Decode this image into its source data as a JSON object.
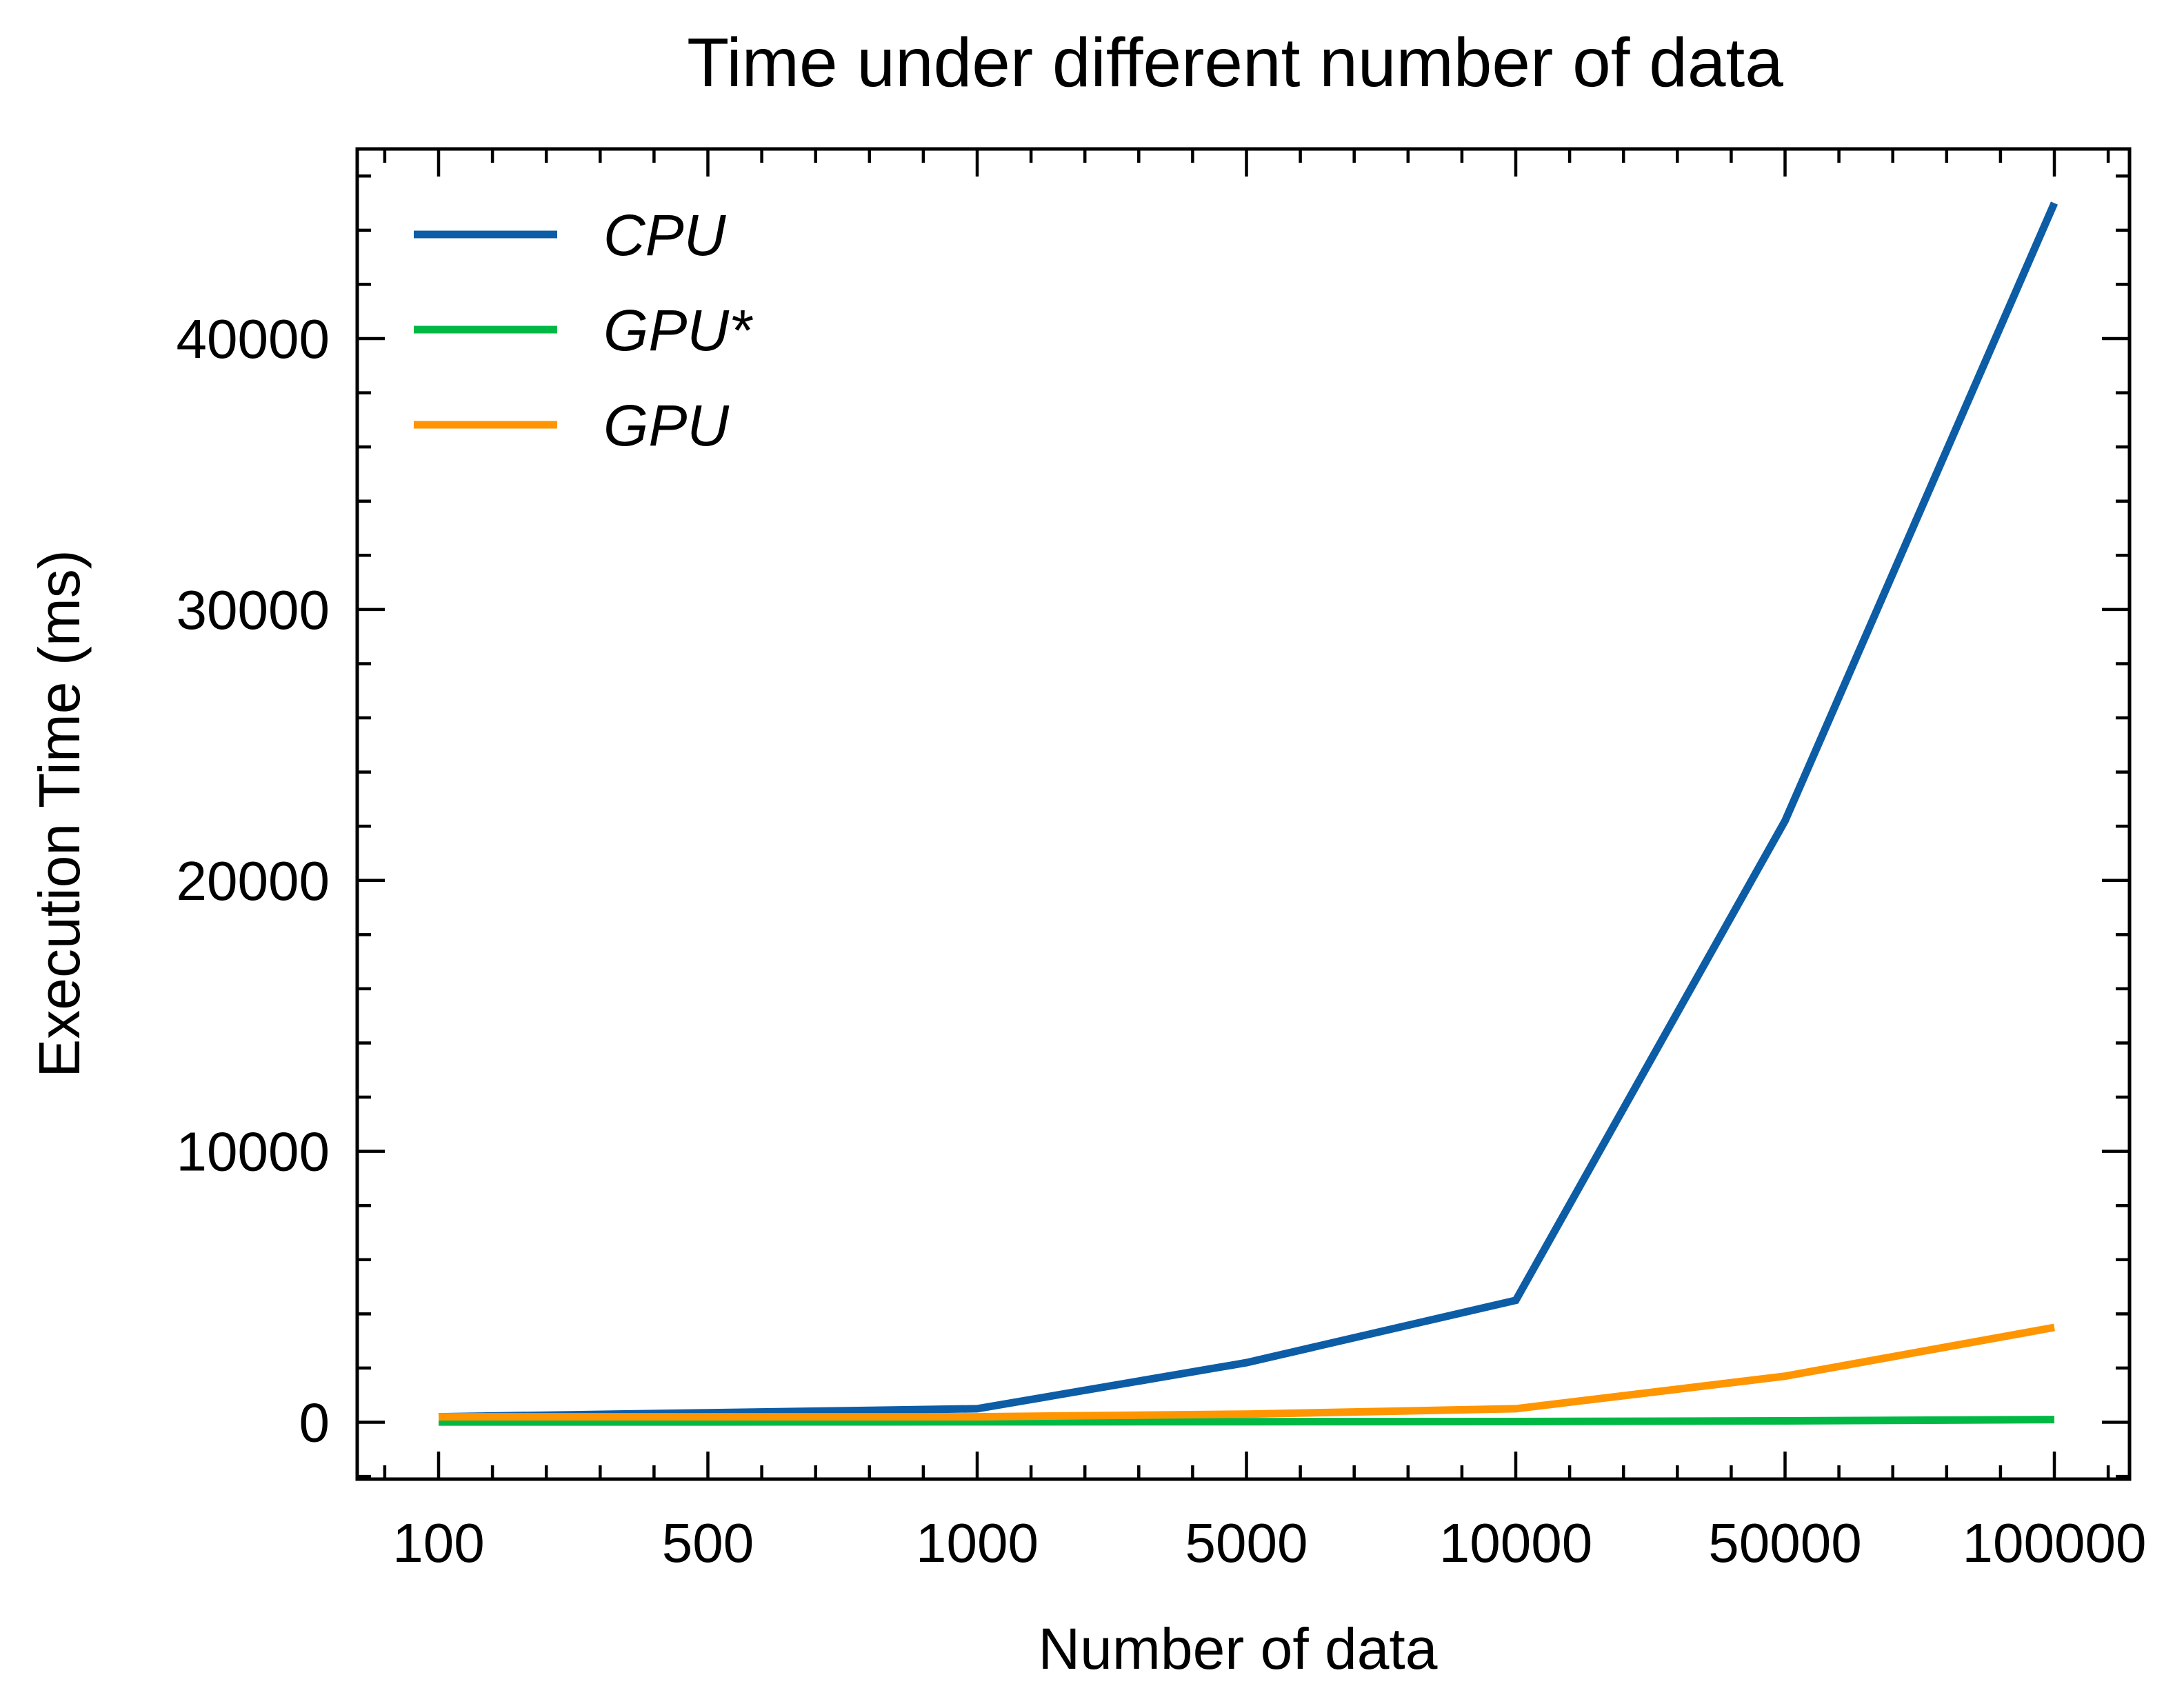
{
  "chart_data": {
    "type": "line",
    "title": "Time under different number of data",
    "xlabel": "Number of data",
    "ylabel": "Execution Time (ms)",
    "categories": [
      "100",
      "500",
      "1000",
      "5000",
      "10000",
      "50000",
      "100000"
    ],
    "x_scale": "categorical",
    "ylim": [
      -2100,
      47000
    ],
    "yticks": [
      0,
      10000,
      20000,
      30000,
      40000
    ],
    "yticks_labels": [
      "0",
      "10000",
      "20000",
      "30000",
      "40000"
    ],
    "grid": false,
    "legend_position": "top-left",
    "series": [
      {
        "name": "CPU",
        "color": "#0C5DA5",
        "values": [
          200,
          350,
          500,
          2200,
          4500,
          22200,
          45000
        ]
      },
      {
        "name": "GPU*",
        "color": "#00B945",
        "values": [
          10,
          10,
          15,
          20,
          25,
          50,
          100
        ]
      },
      {
        "name": "GPU",
        "color": "#FF9500",
        "values": [
          200,
          200,
          200,
          300,
          500,
          1700,
          3500
        ]
      }
    ]
  }
}
